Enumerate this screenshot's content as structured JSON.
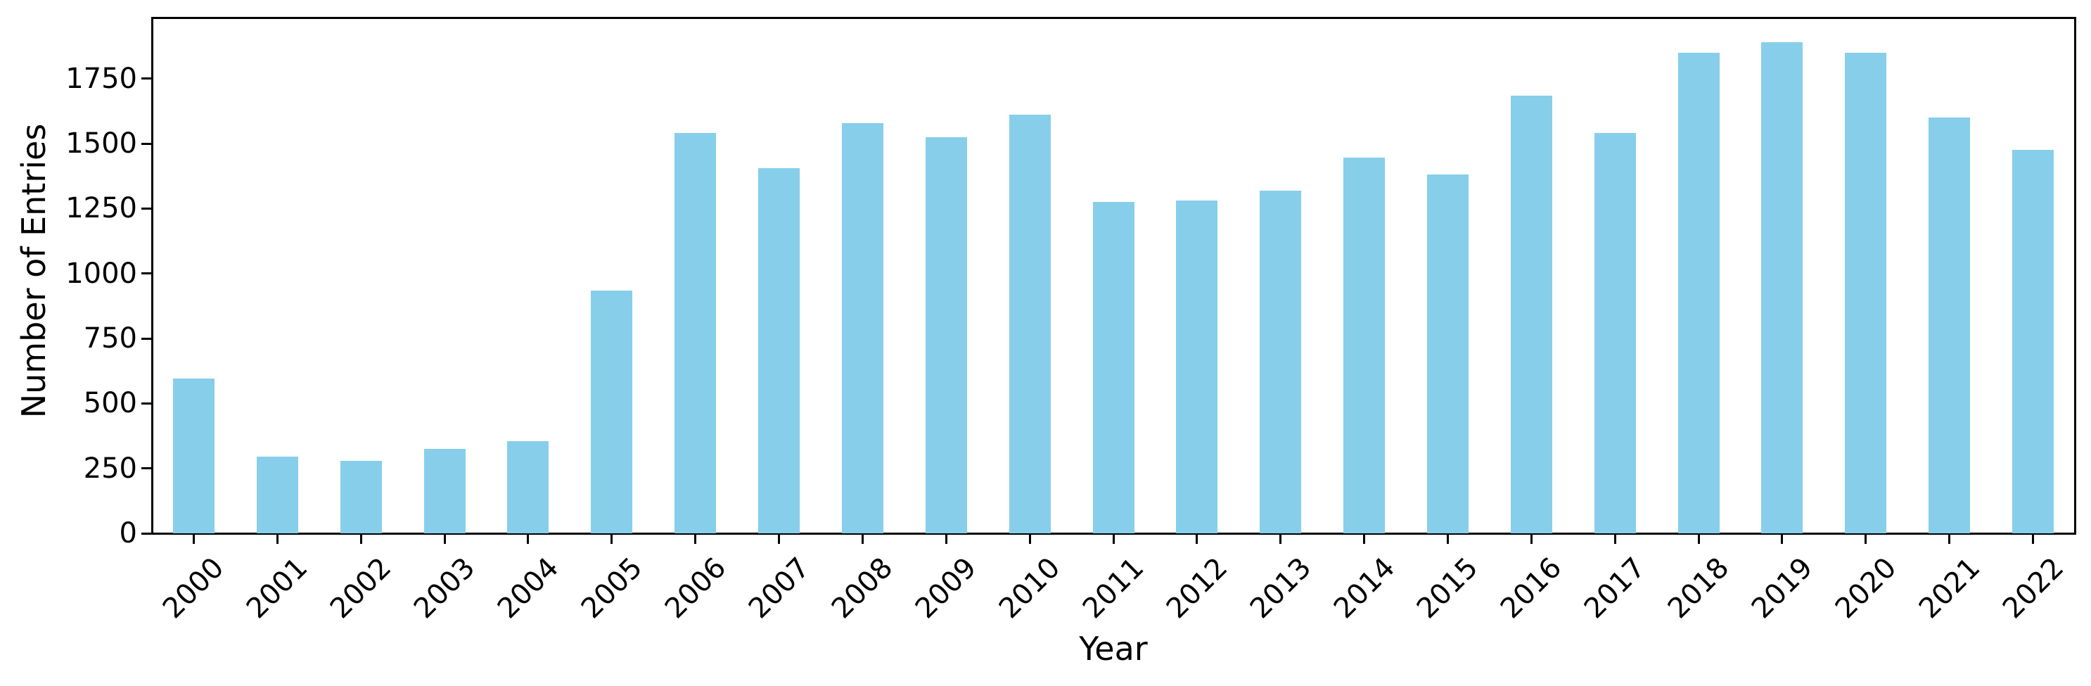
{
  "figure": {
    "background_color": "#ffffff",
    "text_color": "#000000",
    "axis_color": "#000000"
  },
  "chart_data": {
    "type": "bar",
    "title": "",
    "xlabel": "Year",
    "ylabel": "Number of Entries",
    "categories": [
      "2000",
      "2001",
      "2002",
      "2003",
      "2004",
      "2005",
      "2006",
      "2007",
      "2008",
      "2009",
      "2010",
      "2011",
      "2012",
      "2013",
      "2014",
      "2015",
      "2016",
      "2017",
      "2018",
      "2019",
      "2020",
      "2021",
      "2022"
    ],
    "values": [
      595,
      295,
      280,
      325,
      355,
      935,
      1540,
      1405,
      1580,
      1525,
      1610,
      1275,
      1280,
      1320,
      1445,
      1380,
      1685,
      1540,
      1850,
      1890,
      1850,
      1600,
      1475
    ],
    "bar_color": "#87CEEB",
    "ylim": [
      0,
      1985
    ],
    "yticks": [
      0,
      250,
      500,
      750,
      1000,
      1250,
      1500,
      1750
    ],
    "xtick_rotation_deg": 45,
    "grid": false,
    "legend": false,
    "frame": "full-box"
  }
}
